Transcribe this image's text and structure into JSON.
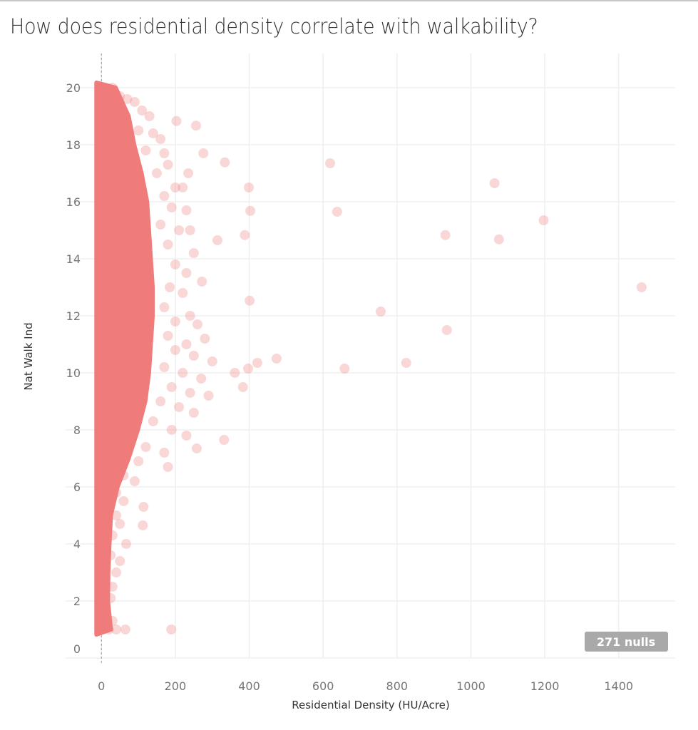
{
  "title": "How does residential density correlate with walkability?",
  "chart_data": {
    "type": "scatter",
    "title": "How does residential density correlate with walkability?",
    "xlabel": "Residential Density (HU/Acre)",
    "ylabel": "Nat Walk Ind",
    "xlim": [
      -97,
      1553
    ],
    "ylim": [
      0,
      21.2
    ],
    "xticks": [
      0,
      200,
      400,
      600,
      800,
      1000,
      1200,
      1400
    ],
    "yticks": [
      0,
      2,
      4,
      6,
      8,
      10,
      12,
      14,
      16,
      18,
      20
    ],
    "grid": true,
    "reference_line_x": 0,
    "mark_color": "#F07B7B",
    "mark_opacity": 0.3,
    "nulls_label": "271 nulls",
    "dense_core_envelope": [
      {
        "y": 20,
        "x_max": 25
      },
      {
        "y": 19,
        "x_max": 60
      },
      {
        "y": 18,
        "x_max": 75
      },
      {
        "y": 17,
        "x_max": 95
      },
      {
        "y": 16,
        "x_max": 110
      },
      {
        "y": 15,
        "x_max": 115
      },
      {
        "y": 14,
        "x_max": 120
      },
      {
        "y": 13,
        "x_max": 125
      },
      {
        "y": 12,
        "x_max": 125
      },
      {
        "y": 11,
        "x_max": 120
      },
      {
        "y": 10,
        "x_max": 115
      },
      {
        "y": 9,
        "x_max": 105
      },
      {
        "y": 8,
        "x_max": 85
      },
      {
        "y": 7,
        "x_max": 60
      },
      {
        "y": 6,
        "x_max": 30
      },
      {
        "y": 5,
        "x_max": 12
      },
      {
        "y": 4,
        "x_max": 8
      },
      {
        "y": 3,
        "x_max": 5
      },
      {
        "y": 2,
        "x_max": 4
      },
      {
        "y": 1,
        "x_max": 12
      }
    ],
    "points": [
      [
        30,
        20
      ],
      [
        50,
        19.7
      ],
      [
        70,
        19.6
      ],
      [
        90,
        19.5
      ],
      [
        110,
        19.2
      ],
      [
        130,
        19
      ],
      [
        100,
        18.5
      ],
      [
        140,
        18.4
      ],
      [
        160,
        18.2
      ],
      [
        120,
        17.8
      ],
      [
        170,
        17.7
      ],
      [
        180,
        17.3
      ],
      [
        150,
        17.0
      ],
      [
        200,
        16.5
      ],
      [
        170,
        16.2
      ],
      [
        220,
        16.5
      ],
      [
        190,
        15.8
      ],
      [
        230,
        15.7
      ],
      [
        160,
        15.2
      ],
      [
        210,
        15.0
      ],
      [
        240,
        15.0
      ],
      [
        180,
        14.5
      ],
      [
        250,
        14.2
      ],
      [
        200,
        13.8
      ],
      [
        230,
        13.5
      ],
      [
        185,
        13.0
      ],
      [
        220,
        12.8
      ],
      [
        170,
        12.3
      ],
      [
        240,
        12.0
      ],
      [
        200,
        11.8
      ],
      [
        260,
        11.7
      ],
      [
        180,
        11.3
      ],
      [
        230,
        11.0
      ],
      [
        280,
        11.2
      ],
      [
        200,
        10.8
      ],
      [
        250,
        10.6
      ],
      [
        300,
        10.4
      ],
      [
        170,
        10.2
      ],
      [
        220,
        10.0
      ],
      [
        270,
        9.8
      ],
      [
        190,
        9.5
      ],
      [
        240,
        9.3
      ],
      [
        290,
        9.2
      ],
      [
        160,
        9.0
      ],
      [
        210,
        8.8
      ],
      [
        250,
        8.6
      ],
      [
        140,
        8.3
      ],
      [
        190,
        8.0
      ],
      [
        230,
        7.8
      ],
      [
        120,
        7.4
      ],
      [
        170,
        7.2
      ],
      [
        100,
        6.9
      ],
      [
        180,
        6.7
      ],
      [
        60,
        6.4
      ],
      [
        90,
        6.2
      ],
      [
        40,
        5.8
      ],
      [
        60,
        5.5
      ],
      [
        40,
        5.0
      ],
      [
        30,
        4.3
      ],
      [
        50,
        4.7
      ],
      [
        25,
        3.6
      ],
      [
        50,
        3.4
      ],
      [
        40,
        3.0
      ],
      [
        30,
        2.5
      ],
      [
        25,
        2.1
      ],
      [
        30,
        1.3
      ],
      [
        40,
        1.0
      ],
      [
        20,
        1.0
      ],
      [
        619,
        17.35
      ],
      [
        638,
        15.65
      ],
      [
        1064,
        16.65
      ],
      [
        1197,
        15.35
      ],
      [
        931,
        14.83
      ],
      [
        1076,
        14.68
      ],
      [
        1462,
        13.0
      ],
      [
        756,
        12.15
      ],
      [
        935,
        11.5
      ],
      [
        825,
        10.35
      ],
      [
        658,
        10.15
      ],
      [
        474,
        10.5
      ],
      [
        422,
        10.35
      ],
      [
        397,
        10.15
      ],
      [
        388,
        14.83
      ],
      [
        401,
        12.53
      ],
      [
        334,
        17.38
      ],
      [
        399,
        16.5
      ],
      [
        403,
        15.68
      ],
      [
        361,
        10.0
      ],
      [
        383,
        9.5
      ],
      [
        332,
        7.65
      ],
      [
        258,
        7.35
      ],
      [
        189,
        1.0
      ],
      [
        65,
        1.0
      ],
      [
        112,
        4.65
      ],
      [
        114,
        5.3
      ],
      [
        67,
        4.0
      ],
      [
        256,
        18.67
      ],
      [
        203,
        18.83
      ],
      [
        276,
        17.7
      ],
      [
        235,
        17.0
      ],
      [
        314,
        14.65
      ],
      [
        272,
        13.2
      ]
    ]
  }
}
